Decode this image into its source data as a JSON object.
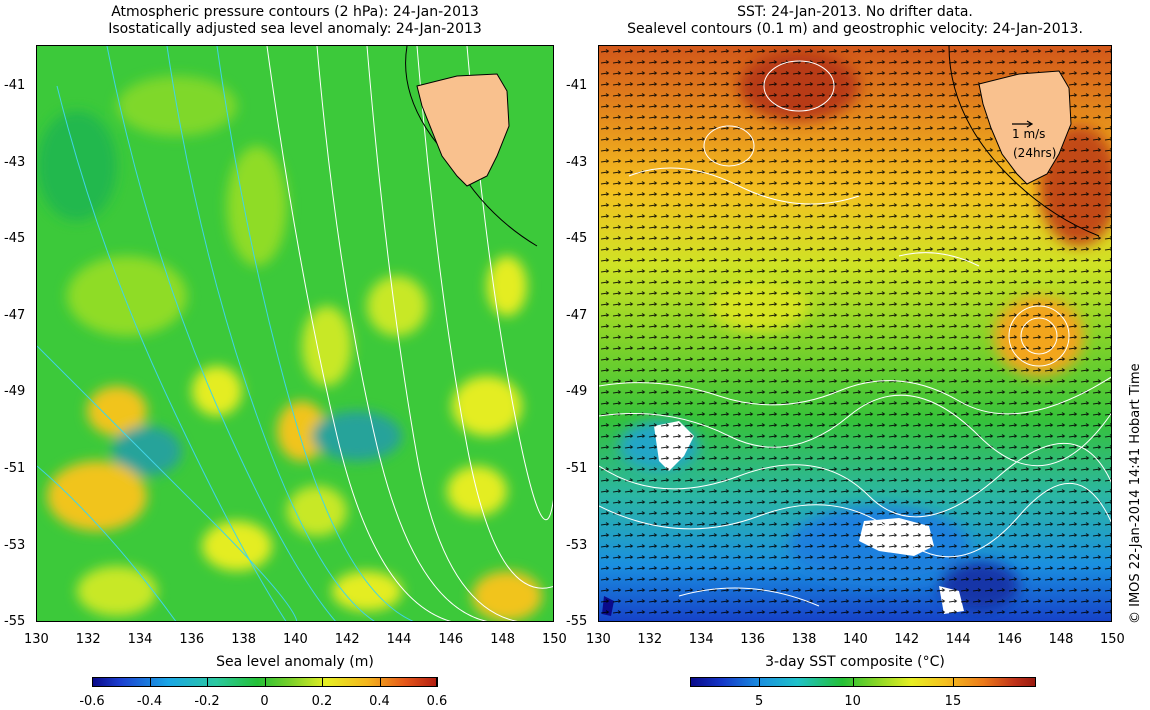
{
  "left_panel": {
    "title_line1": "Atmospheric pressure contours (2 hPa): 24-Jan-2013",
    "title_line2": "Isostatically adjusted sea level anomaly: 24-Jan-2013",
    "y_ticks": [
      "-41",
      "-43",
      "-45",
      "-47",
      "-49",
      "-51",
      "-53",
      "-55"
    ],
    "x_ticks": [
      "130",
      "132",
      "134",
      "136",
      "138",
      "140",
      "142",
      "144",
      "146",
      "148",
      "150"
    ],
    "colorbar_label": "Sea level anomaly (m)",
    "colorbar_ticks": [
      "-0.6",
      "-0.4",
      "-0.2",
      "0",
      "0.2",
      "0.4",
      "0.6"
    ]
  },
  "right_panel": {
    "title_line1": "SST: 24-Jan-2013. No drifter data.",
    "title_line2": "Sealevel contours (0.1 m) and geostrophic velocity: 24-Jan-2013.",
    "y_ticks": [
      "-41",
      "-43",
      "-45",
      "-47",
      "-49",
      "-51",
      "-53",
      "-55"
    ],
    "x_ticks": [
      "130",
      "132",
      "134",
      "136",
      "138",
      "140",
      "142",
      "144",
      "146",
      "148",
      "150"
    ],
    "colorbar_label": "3-day SST composite (°C)",
    "colorbar_ticks": [
      "5",
      "10",
      "15"
    ],
    "scale_label_speed": "1 m/s",
    "scale_label_time": "(24hrs)"
  },
  "credit": "© IMOS 22-Jan-2014 14:41 Hobart Time",
  "colors": {
    "land": "#f9c18e",
    "coast": "#000000",
    "contour_white": "#ffffff",
    "contour_cyan": "#41d4e6"
  },
  "map_extent": {
    "lon": [
      130,
      150
    ],
    "lat": [
      -55,
      -40.3
    ]
  }
}
